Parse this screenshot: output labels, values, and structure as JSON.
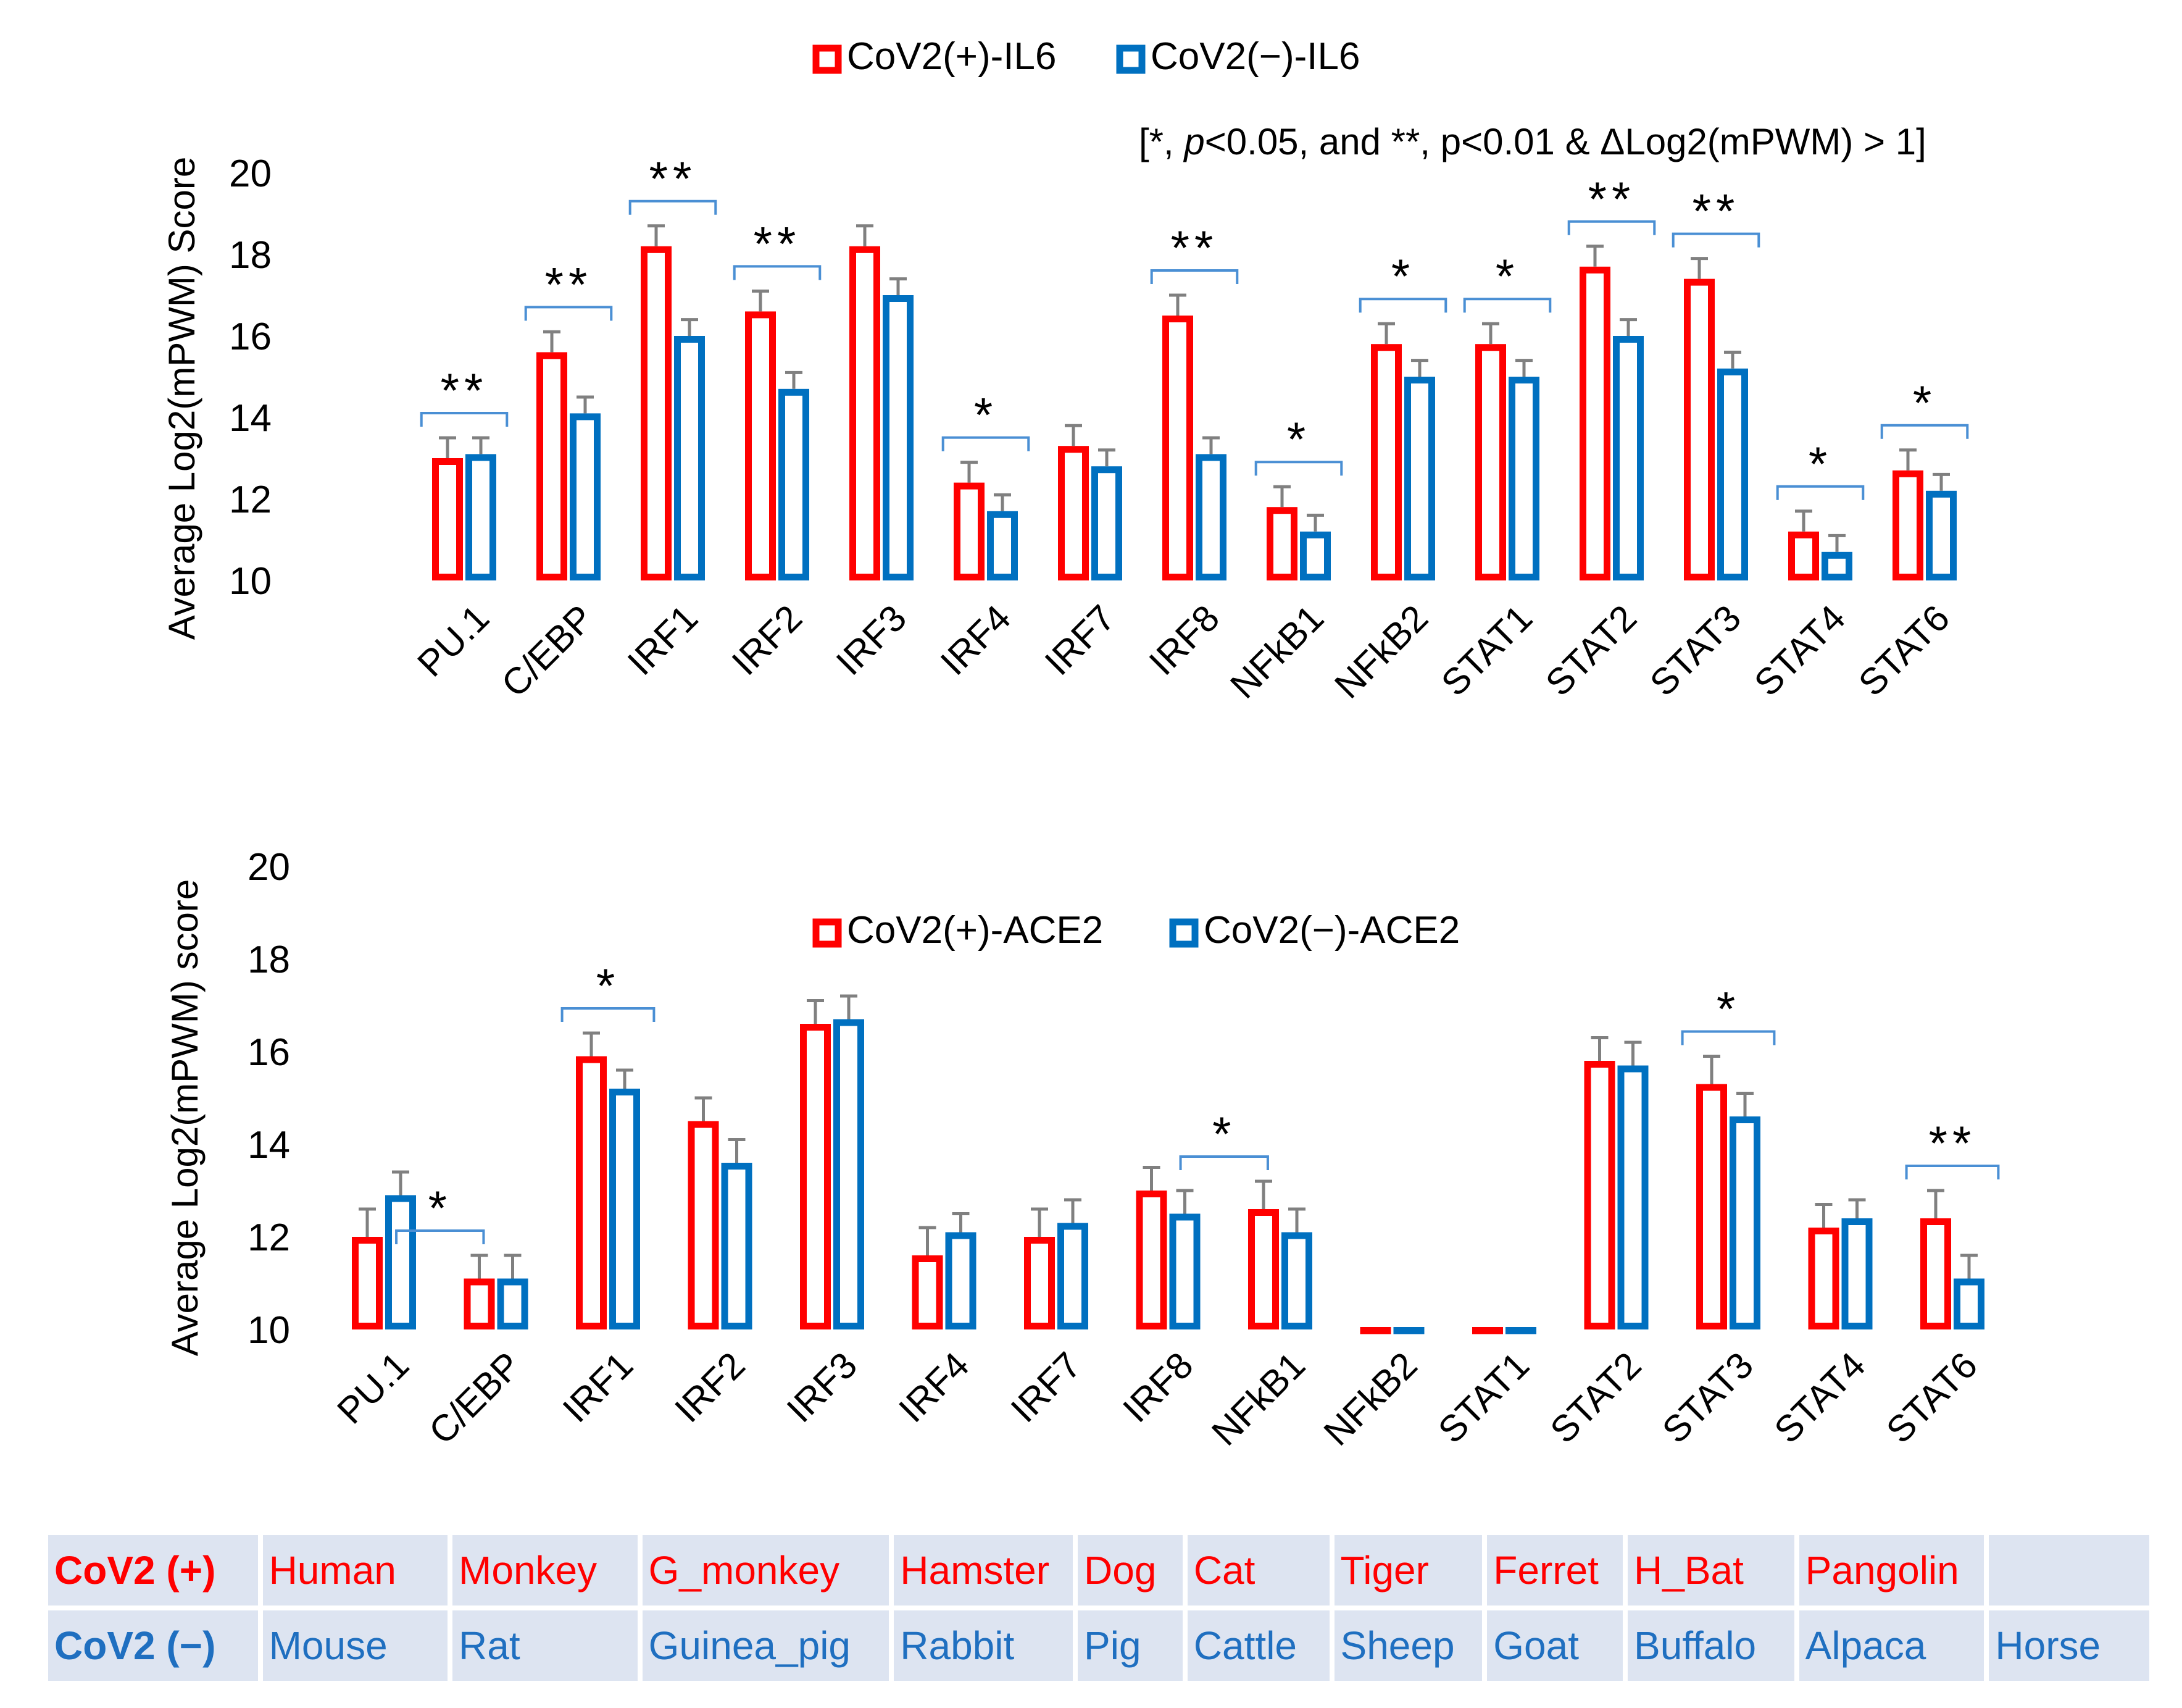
{
  "colors": {
    "positive": "#ff0000",
    "negative": "#0070c0",
    "error": "#808080",
    "bracket": "#4a8fd4",
    "text": "#000000"
  },
  "chart_data": [
    {
      "type": "bar",
      "title": "",
      "ylabel": "Average Log2(mPWM) Score",
      "xlabel": "",
      "ylim": [
        10,
        20
      ],
      "yticks": [
        10,
        12,
        14,
        16,
        18,
        20
      ],
      "legend": [
        "CoV2(+)-IL6",
        "CoV2(−)-IL6"
      ],
      "note": "[*, p<0.05, and **, p<0.01 & ΔLog2(mPWM) > 1]",
      "note_parts": [
        "[*, ",
        "p",
        "<0.05, and **, p<0.01 & ΔLog2(mPWM) > 1]"
      ],
      "categories": [
        "PU.1",
        "C/EBP",
        "IRF1",
        "IRF2",
        "IRF3",
        "IRF4",
        "IRF7",
        "IRF8",
        "NFkB1",
        "NFkB2",
        "STAT1",
        "STAT2",
        "STAT3",
        "STAT4",
        "STAT6"
      ],
      "series": [
        {
          "name": "CoV2(+)-IL6",
          "values": [
            13.0,
            15.6,
            18.2,
            16.6,
            18.2,
            12.4,
            13.3,
            16.5,
            11.8,
            15.8,
            15.8,
            17.7,
            17.4,
            11.2,
            12.7
          ],
          "errors": [
            0.5,
            0.5,
            0.5,
            0.5,
            0.5,
            0.5,
            0.5,
            0.5,
            0.5,
            0.5,
            0.5,
            0.5,
            0.5,
            0.5,
            0.5
          ]
        },
        {
          "name": "CoV2(−)-IL6",
          "values": [
            13.1,
            14.1,
            16.0,
            14.7,
            17.0,
            11.7,
            12.8,
            13.1,
            11.2,
            15.0,
            15.0,
            16.0,
            15.2,
            10.7,
            12.2
          ],
          "errors": [
            0.4,
            0.4,
            0.4,
            0.4,
            0.4,
            0.4,
            0.4,
            0.4,
            0.4,
            0.4,
            0.4,
            0.4,
            0.4,
            0.4,
            0.4
          ]
        }
      ],
      "significance": [
        "**",
        "**",
        "**",
        "**",
        "",
        "*",
        "",
        "**",
        "*",
        "*",
        "*",
        "**",
        "**",
        "*",
        "*"
      ]
    },
    {
      "type": "bar",
      "title": "",
      "ylabel": "Average Log2(mPWM) score",
      "xlabel": "",
      "ylim": [
        10,
        20
      ],
      "yticks": [
        10,
        12,
        14,
        16,
        18,
        20
      ],
      "legend": [
        "CoV2(+)-ACE2",
        "CoV2(−)-ACE2"
      ],
      "categories": [
        "PU.1",
        "C/EBP",
        "IRF1",
        "IRF2",
        "IRF3",
        "IRF4",
        "IRF7",
        "IRF8",
        "NFkB1",
        "NFkB2",
        "STAT1",
        "STAT2",
        "STAT3",
        "STAT4",
        "STAT6"
      ],
      "series": [
        {
          "name": "CoV2(+)-ACE2",
          "values": [
            12.0,
            11.1,
            15.9,
            14.5,
            16.6,
            11.6,
            12.0,
            13.0,
            12.6,
            10.05,
            10.05,
            15.8,
            15.3,
            12.2,
            12.4
          ],
          "errors": [
            0.6,
            0.5,
            0.5,
            0.5,
            0.5,
            0.6,
            0.6,
            0.5,
            0.6,
            0,
            0,
            0.5,
            0.6,
            0.5,
            0.6
          ]
        },
        {
          "name": "CoV2(−)-ACE2",
          "values": [
            12.9,
            11.1,
            15.2,
            13.6,
            16.7,
            12.1,
            12.3,
            12.5,
            12.1,
            10.05,
            10.05,
            15.7,
            14.6,
            12.4,
            11.1
          ],
          "errors": [
            0.5,
            0.5,
            0.4,
            0.5,
            0.5,
            0.4,
            0.5,
            0.5,
            0.5,
            0,
            0,
            0.5,
            0.5,
            0.4,
            0.5
          ]
        }
      ],
      "significance": [
        "",
        "*",
        "*",
        "",
        "",
        "",
        "",
        "",
        "*",
        "",
        "",
        "",
        "*",
        "",
        "**"
      ],
      "significance_offset": [
        0,
        -1,
        0,
        0,
        0,
        0,
        0,
        0,
        -1,
        0,
        0,
        0,
        0,
        0,
        0
      ]
    }
  ],
  "species_table": {
    "positive_label": "CoV2 (+)",
    "negative_label": "CoV2 (−)",
    "positive": [
      "Human",
      "Monkey",
      "G_monkey",
      "Hamster",
      "Dog",
      "Cat",
      "Tiger",
      "Ferret",
      "H_Bat",
      "Pangolin",
      ""
    ],
    "negative": [
      "Mouse",
      "Rat",
      "Guinea_pig",
      "Rabbit",
      "Pig",
      "Cattle",
      "Sheep",
      "Goat",
      "Buffalo",
      "Alpaca",
      "Horse"
    ]
  }
}
